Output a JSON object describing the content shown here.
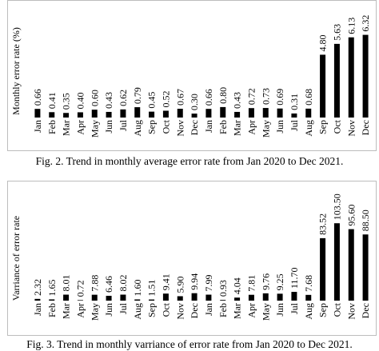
{
  "chart_data": [
    {
      "type": "bar",
      "ylabel": "Monthly error rate (%)",
      "caption": "Fig. 2. Trend in monthly average error rate from Jan 2020 to Dec 2021.",
      "categories": [
        "Jan",
        "Feb",
        "Mar",
        "Apr",
        "May",
        "Jun",
        "Jul",
        "Aug",
        "Sep",
        "Oct",
        "Nov",
        "Dec",
        "Jan",
        "Feb",
        "Mar",
        "Apr",
        "May",
        "Jun",
        "Jul",
        "Aug",
        "Sep",
        "Oct",
        "Nov",
        "Dec"
      ],
      "values": [
        0.66,
        0.41,
        0.35,
        0.4,
        0.6,
        0.43,
        0.62,
        0.79,
        0.45,
        0.52,
        0.67,
        0.3,
        0.66,
        0.8,
        0.43,
        0.72,
        0.73,
        0.69,
        0.31,
        0.68,
        4.8,
        5.63,
        6.13,
        6.32
      ],
      "value_labels": [
        "0.66",
        "0.41",
        "0.35",
        "0.40",
        "0.60",
        "0.43",
        "0.62",
        "0.79",
        "0.45",
        "0.52",
        "0.67",
        "0.30",
        "0.66",
        "0.80",
        "0.43",
        "0.72",
        "0.73",
        "0.69",
        "0.31",
        "0.68",
        "4.80",
        "5.63",
        "6.13",
        "6.32"
      ],
      "ylim": [
        0,
        6.6
      ],
      "grid": false,
      "bar_color": "#000000"
    },
    {
      "type": "bar",
      "ylabel": "Varriance of error rate",
      "caption": "Fig. 3. Trend in monthly varriance of error rate from Jan 2020 to Dec 2021.",
      "categories": [
        "Jan",
        "Feb",
        "Mar",
        "Apr",
        "May",
        "Jun",
        "Jul",
        "Aug",
        "Sep",
        "Oct",
        "Nov",
        "Dec",
        "Jan",
        "Feb",
        "Mar",
        "Apr",
        "May",
        "Jun",
        "Jul",
        "Aug",
        "Sep",
        "Oct",
        "Nov",
        "Dec"
      ],
      "values": [
        2.32,
        1.65,
        8.01,
        0.72,
        7.88,
        6.46,
        8.02,
        1.6,
        1.51,
        9.41,
        5.9,
        9.94,
        7.99,
        0.93,
        4.04,
        7.81,
        9.76,
        9.25,
        11.7,
        7.68,
        83.52,
        103.5,
        95.6,
        88.5
      ],
      "value_labels": [
        "2.32",
        "1.65",
        "8.01",
        "0.72",
        "7.88",
        "6.46",
        "8.02",
        "1.60",
        "1.51",
        "9.41",
        "5.90",
        "9.94",
        "7.99",
        "0.93",
        "4.04",
        "7.81",
        "9.76",
        "9.25",
        "11.70",
        "7.68",
        "83.52",
        "103.50",
        "95.60",
        "88.50"
      ],
      "ylim": [
        0,
        108
      ],
      "grid": false,
      "bar_color": "#000000"
    }
  ]
}
